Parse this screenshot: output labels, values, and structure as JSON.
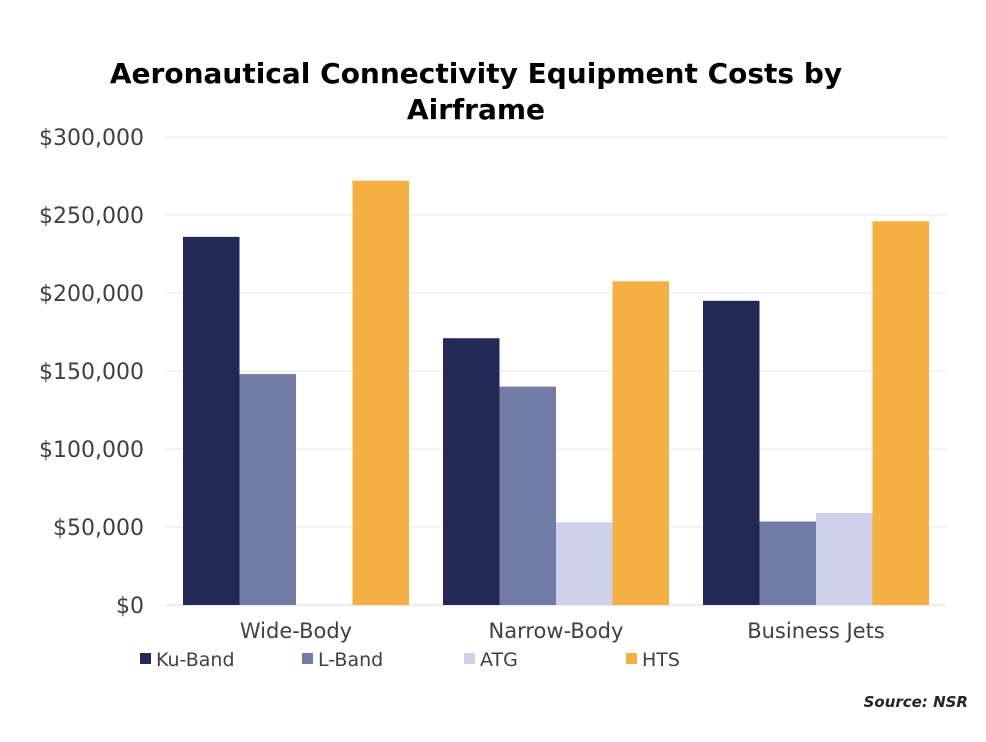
{
  "chart_data": {
    "type": "bar",
    "title_lines": [
      "Aeronautical Connectivity Equipment Costs by",
      "Airframe"
    ],
    "categories": [
      "Wide-Body",
      "Narrow-Body",
      "Business Jets"
    ],
    "series": [
      {
        "name": "Ku-Band",
        "color": "#232955",
        "values": [
          236000,
          171000,
          195000
        ]
      },
      {
        "name": "L-Band",
        "color": "#737ca7",
        "values": [
          148000,
          140000,
          53500
        ]
      },
      {
        "name": "ATG",
        "color": "#cfd1ea",
        "values": [
          0,
          53000,
          59000
        ]
      },
      {
        "name": "HTS",
        "color": "#f4b042",
        "values": [
          272000,
          207500,
          246000
        ]
      }
    ],
    "ylim": [
      0,
      300000
    ],
    "y_ticks": [
      "$0",
      "$50,000",
      "$100,000",
      "$150,000",
      "$200,000",
      "$250,000",
      "$300,000"
    ],
    "grid": true,
    "legend_position": "bottom",
    "source": "Source: NSR"
  }
}
